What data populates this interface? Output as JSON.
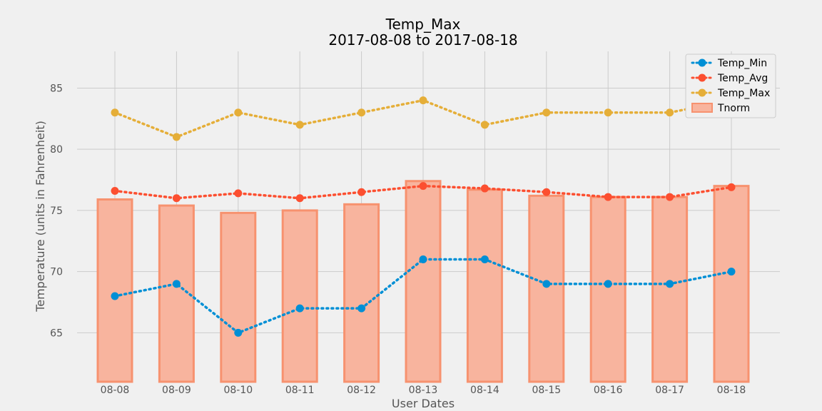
{
  "chart_data": {
    "type": "line",
    "title": "Temp_Max",
    "subtitle": "2017-08-08 to 2017-08-18",
    "xlabel": "User Dates",
    "ylabel": "Temperature (units in Fahrenheit)",
    "ylim": [
      61,
      88
    ],
    "yticks": [
      65,
      70,
      75,
      80,
      85
    ],
    "grid": true,
    "legend_position": "top-right",
    "categories": [
      "08-08",
      "08-09",
      "08-10",
      "08-11",
      "08-12",
      "08-13",
      "08-14",
      "08-15",
      "08-16",
      "08-17",
      "08-18"
    ],
    "series": [
      {
        "name": "Temp_Min",
        "style": "dotted-line-markers",
        "color": "#008fd5",
        "values": [
          68,
          69,
          65,
          67,
          67,
          71,
          71,
          69,
          69,
          69,
          70
        ]
      },
      {
        "name": "Temp_Avg",
        "style": "dotted-line-markers",
        "color": "#fc4f30",
        "values": [
          76.6,
          76.0,
          76.4,
          76.0,
          76.5,
          77.0,
          76.8,
          76.5,
          76.1,
          76.1,
          76.9
        ]
      },
      {
        "name": "Temp_Max",
        "style": "dotted-line-markers",
        "color": "#e5ae38",
        "values": [
          83,
          81,
          83,
          82,
          83,
          84,
          82,
          83,
          83,
          83,
          84
        ]
      },
      {
        "name": "Tnorm",
        "style": "bar",
        "color": "#fc4f30",
        "values": [
          75.9,
          75.4,
          74.8,
          75.0,
          75.5,
          77.4,
          76.7,
          76.2,
          76.1,
          76.1,
          77.0
        ]
      }
    ]
  }
}
